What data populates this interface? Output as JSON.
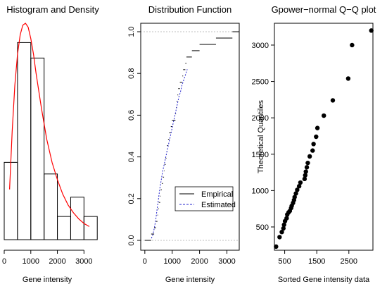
{
  "chart_data": [
    {
      "type": "bar",
      "title": "Histogram and Density",
      "xlabel": "Gene intensity",
      "ylabel": "",
      "xlim": [
        0,
        3600
      ],
      "ylim": [
        0,
        0.00056
      ],
      "x_ticks": [
        0,
        1000,
        2000,
        3000
      ],
      "x_tick_labels": [
        "0",
        "1000",
        "2000",
        "3000"
      ],
      "bins": [
        {
          "from": 0,
          "to": 500,
          "value": 0.0002
        },
        {
          "from": 500,
          "to": 1000,
          "value": 0.00051
        },
        {
          "from": 1000,
          "to": 1500,
          "value": 0.00047
        },
        {
          "from": 1500,
          "to": 2000,
          "value": 0.00017
        },
        {
          "from": 2000,
          "to": 2500,
          "value": 6e-05
        },
        {
          "from": 2500,
          "to": 3000,
          "value": 0.00011
        },
        {
          "from": 3000,
          "to": 3500,
          "value": 6e-05
        }
      ],
      "density_curve": {
        "color": "#ff0000",
        "x": [
          200,
          300,
          400,
          500,
          600,
          700,
          800,
          900,
          1000,
          1100,
          1200,
          1400,
          1600,
          1800,
          2000,
          2200,
          2400,
          2600,
          2800,
          3000,
          3200
        ],
        "y": [
          0.00013,
          0.00028,
          0.0004,
          0.00048,
          0.00053,
          0.000555,
          0.00056,
          0.00055,
          0.00052,
          0.00048,
          0.00043,
          0.00034,
          0.00026,
          0.0002,
          0.000155,
          0.000118,
          9e-05,
          7e-05,
          5.4e-05,
          4.2e-05,
          3.4e-05
        ]
      }
    },
    {
      "type": "line",
      "title": "Distribution Function",
      "xlabel": "Gene intensity",
      "ylabel": "",
      "xlim": [
        -150,
        3450
      ],
      "ylim": [
        0,
        1
      ],
      "x_ticks": [
        0,
        1000,
        2000,
        3000
      ],
      "x_tick_labels": [
        "0",
        "1000",
        "2000",
        "3000"
      ],
      "y_ticks": [
        0,
        0.2,
        0.4,
        0.6,
        0.8,
        1
      ],
      "y_tick_labels": [
        "0.0",
        "0.2",
        "0.4",
        "0.6",
        "0.8",
        "1.0"
      ],
      "reference_lines": [
        0,
        1
      ],
      "legend": {
        "position": "bottom-right",
        "entries": [
          "Empirical",
          "Estimated"
        ]
      },
      "series": [
        {
          "name": "Empirical",
          "color": "#000000",
          "step_values": [
            232,
            340,
            410,
            460,
            480,
            510,
            560,
            580,
            620,
            660,
            700,
            720,
            760,
            790,
            810,
            850,
            890,
            950,
            990,
            1120,
            1140,
            1160,
            1190,
            1220,
            1280,
            1370,
            1400,
            1480,
            1520,
            1720,
            2000,
            2600,
            3200
          ]
        },
        {
          "name": "Estimated",
          "color": "#2222cc",
          "x": [
            240,
            300,
            350,
            400,
            450,
            500,
            550,
            600,
            650,
            700,
            750,
            800,
            850,
            900,
            950,
            1000,
            1050,
            1100,
            1150,
            1200,
            1250,
            1300,
            1350,
            1400,
            1450,
            1500,
            1550
          ],
          "y": [
            0.01,
            0.03,
            0.06,
            0.1,
            0.15,
            0.2,
            0.25,
            0.29,
            0.33,
            0.36,
            0.39,
            0.42,
            0.45,
            0.48,
            0.51,
            0.54,
            0.57,
            0.6,
            0.63,
            0.66,
            0.69,
            0.71,
            0.74,
            0.76,
            0.78,
            0.8,
            0.82
          ]
        }
      ]
    },
    {
      "type": "scatter",
      "title": "Gpower−normal Q−Q plot",
      "xlabel": "Sorted Gene intensity data",
      "ylabel": "Theoretical Quantiles",
      "xlim": [
        180,
        3250
      ],
      "ylim": [
        180,
        3300
      ],
      "x_ticks": [
        500,
        1500,
        2500
      ],
      "x_tick_labels": [
        "500",
        "1500",
        "2500"
      ],
      "y_ticks": [
        500,
        1000,
        1500,
        2000,
        2500,
        3000
      ],
      "y_tick_labels": [
        "500",
        "1000",
        "1500",
        "2000",
        "2500",
        "3000"
      ],
      "x": [
        232,
        340,
        410,
        460,
        480,
        510,
        560,
        580,
        620,
        660,
        700,
        720,
        760,
        790,
        810,
        850,
        890,
        950,
        990,
        1120,
        1140,
        1160,
        1190,
        1220,
        1280,
        1370,
        1400,
        1480,
        1520,
        1720,
        2000,
        2480,
        2600,
        3200
      ],
      "y": [
        230,
        360,
        430,
        480,
        530,
        580,
        620,
        670,
        700,
        720,
        760,
        790,
        830,
        870,
        910,
        960,
        1010,
        1060,
        1110,
        1160,
        1210,
        1260,
        1320,
        1380,
        1470,
        1550,
        1640,
        1740,
        1860,
        2030,
        2240,
        2540,
        3000,
        3200
      ]
    }
  ]
}
